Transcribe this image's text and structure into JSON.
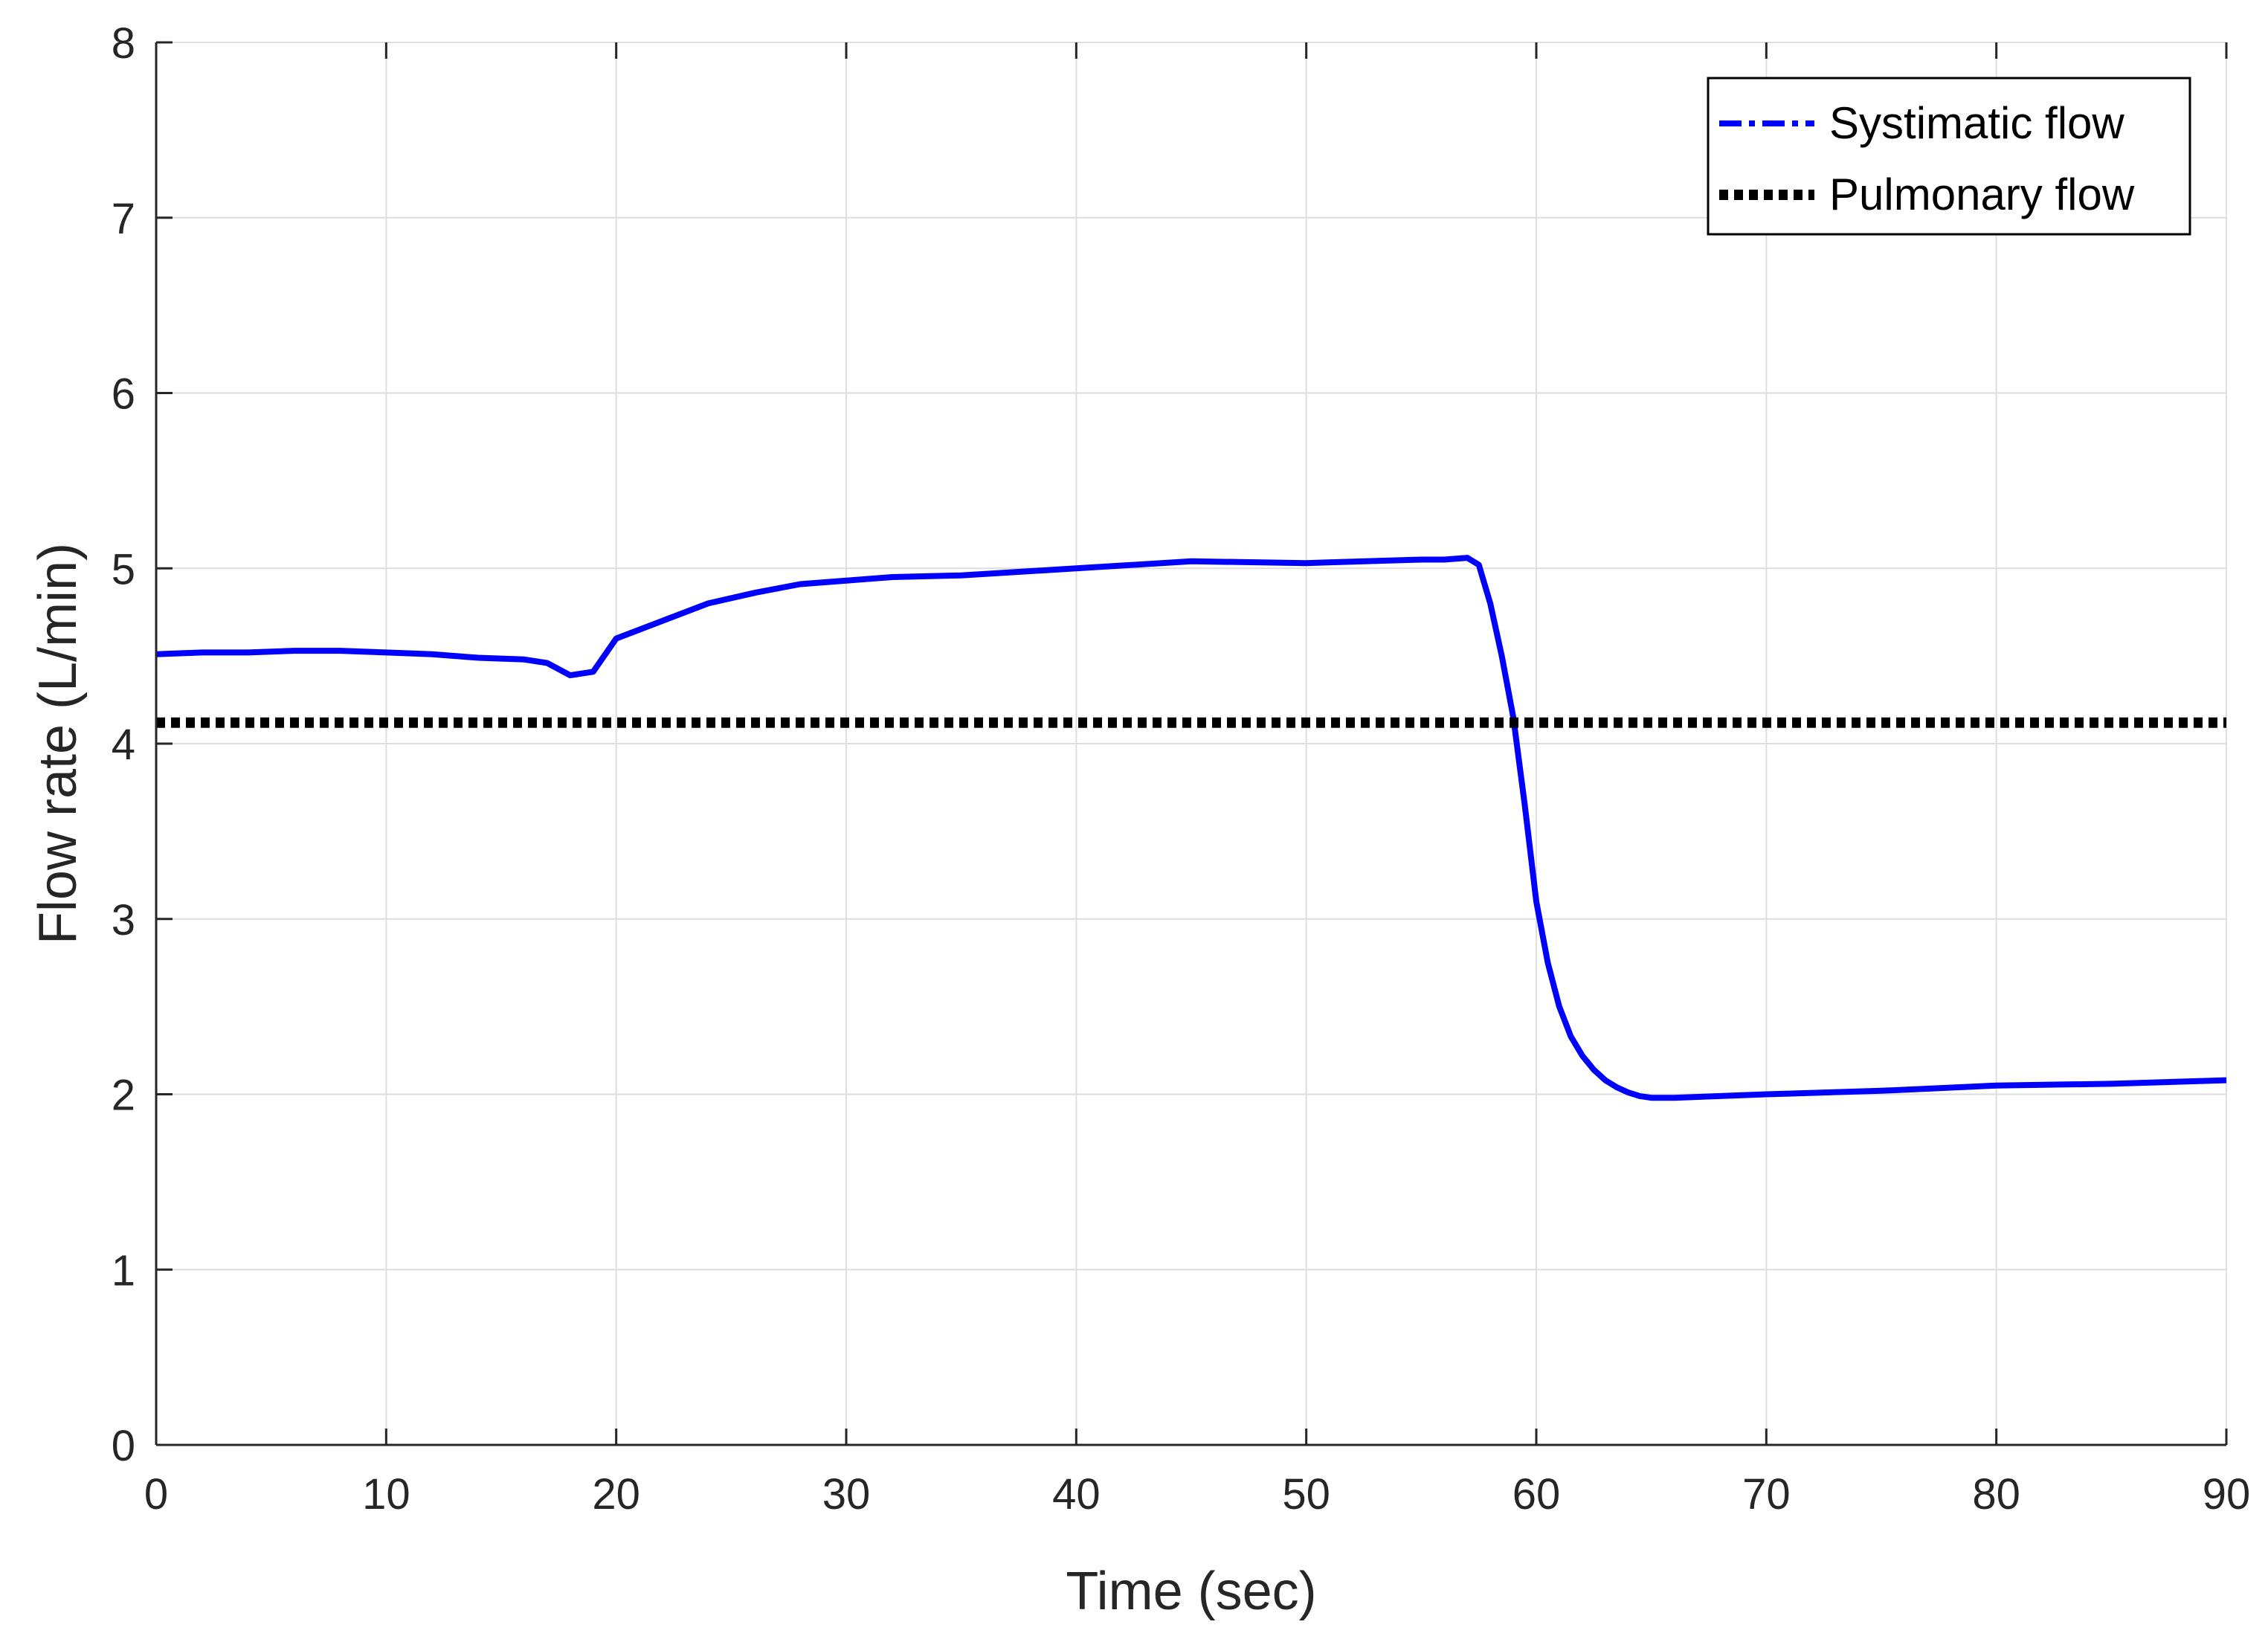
{
  "chart_data": {
    "type": "line",
    "title": "",
    "xlabel": "Time (sec)",
    "ylabel": "Flow rate (L/min)",
    "xlim": [
      0,
      90
    ],
    "ylim": [
      0,
      8
    ],
    "xticks": [
      0,
      10,
      20,
      30,
      40,
      50,
      60,
      70,
      80,
      90
    ],
    "yticks": [
      0,
      1,
      2,
      3,
      4,
      5,
      6,
      7,
      8
    ],
    "grid": true,
    "legend_position": "top-right",
    "series": [
      {
        "name": "Systimatic flow",
        "color": "#0000ff",
        "style": "dash-dot",
        "x": [
          0,
          2,
          4,
          6,
          8,
          10,
          12,
          14,
          16,
          17,
          18,
          19,
          20,
          22,
          24,
          26,
          28,
          30,
          32,
          35,
          40,
          45,
          50,
          55,
          56,
          57,
          57.5,
          58,
          58.5,
          59,
          59.5,
          60,
          60.5,
          61,
          61.5,
          62,
          62.5,
          63,
          63.5,
          64,
          64.5,
          65,
          66,
          68,
          70,
          75,
          80,
          85,
          90
        ],
        "y": [
          4.51,
          4.52,
          4.52,
          4.53,
          4.53,
          4.52,
          4.51,
          4.49,
          4.48,
          4.46,
          4.39,
          4.41,
          4.6,
          4.7,
          4.8,
          4.86,
          4.91,
          4.93,
          4.95,
          4.96,
          5.0,
          5.04,
          5.03,
          5.05,
          5.05,
          5.06,
          5.02,
          4.8,
          4.5,
          4.15,
          3.65,
          3.1,
          2.75,
          2.5,
          2.33,
          2.22,
          2.14,
          2.08,
          2.04,
          2.01,
          1.99,
          1.98,
          1.98,
          1.99,
          2.0,
          2.02,
          2.05,
          2.06,
          2.08
        ]
      },
      {
        "name": "Pulmonary flow",
        "color": "#000000",
        "style": "dotted",
        "x": [
          0,
          90
        ],
        "y": [
          4.12,
          4.12
        ]
      }
    ]
  }
}
